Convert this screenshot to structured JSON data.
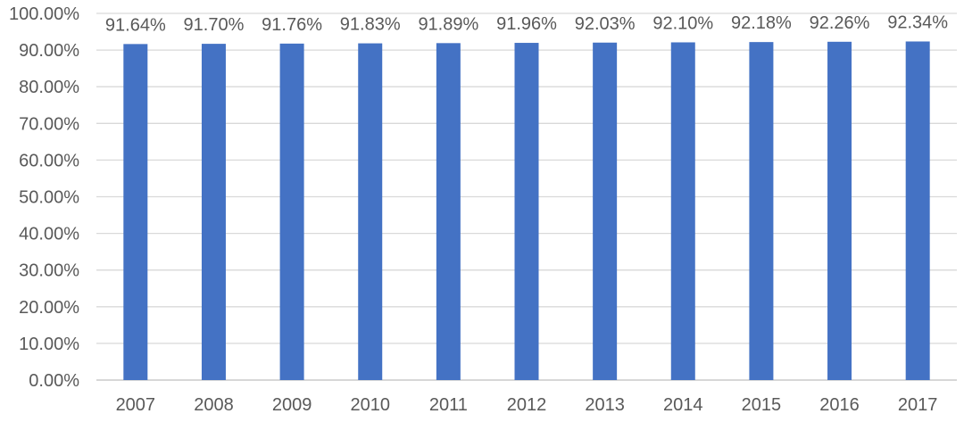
{
  "chart_data": {
    "type": "bar",
    "title": "",
    "xlabel": "",
    "ylabel": "",
    "categories": [
      "2007",
      "2008",
      "2009",
      "2010",
      "2011",
      "2012",
      "2013",
      "2014",
      "2015",
      "2016",
      "2017"
    ],
    "values": [
      91.64,
      91.7,
      91.76,
      91.83,
      91.89,
      91.96,
      92.03,
      92.1,
      92.18,
      92.26,
      92.34
    ],
    "data_labels": [
      "91.64%",
      "91.70%",
      "91.76%",
      "91.83%",
      "91.89%",
      "91.96%",
      "92.03%",
      "92.10%",
      "92.18%",
      "92.26%",
      "92.34%"
    ],
    "ylim": [
      0,
      100
    ],
    "y_ticks": [
      0,
      10,
      20,
      30,
      40,
      50,
      60,
      70,
      80,
      90,
      100
    ],
    "y_tick_labels": [
      "0.00%",
      "10.00%",
      "20.00%",
      "30.00%",
      "40.00%",
      "50.00%",
      "60.00%",
      "70.00%",
      "80.00%",
      "90.00%",
      "100.00%"
    ],
    "bar_color": "#4472c4",
    "grid": true,
    "legend": "none"
  }
}
